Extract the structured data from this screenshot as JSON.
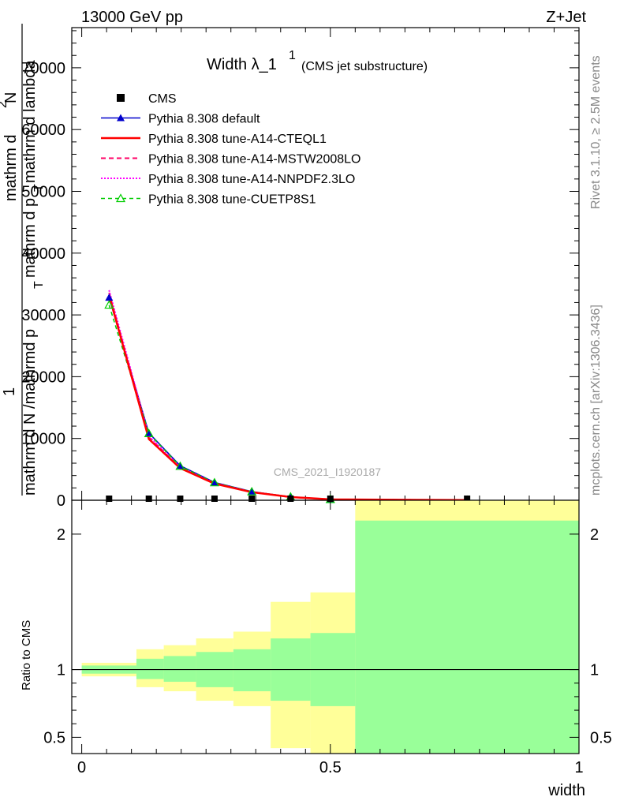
{
  "header": {
    "left": "13000 GeV pp",
    "right": "Z+Jet"
  },
  "side_labels": {
    "rivet": "Rivet 3.1.10, ≥ 2.5M events",
    "mcplots": "mcplots.cern.ch [arXiv:1306.3436]"
  },
  "watermark": "CMS_2021_I1920187",
  "colors": {
    "cms": "#000000",
    "default": "#0000cc",
    "a14_cteql1": "#ff0000",
    "a14_mstw": "#ff0066",
    "a14_nnpdf": "#ff00ff",
    "cuetp8s1": "#00cc00",
    "band_inner": "#99ff99",
    "band_outer": "#ffff99"
  },
  "chart_data": [
    {
      "type": "line",
      "title": "Width λ_1",
      "title_sup": "1",
      "title_note": "(CMS jet substructure)",
      "ylabel_parts": [
        "1",
        "mathrm d N /mathrmd p",
        "T",
        "mathrm d",
        "2",
        "N",
        "mathrm d p",
        "T",
        "mathrm d lambda"
      ],
      "ylim": [
        0,
        76500
      ],
      "xlim": [
        -0.02,
        1.0
      ],
      "yticks": [
        0,
        10000,
        20000,
        30000,
        40000,
        50000,
        60000,
        70000
      ],
      "ytick_labels": [
        "0",
        "10000",
        "20000",
        "30000",
        "40000",
        "50000",
        "60000",
        "70000"
      ],
      "x": [
        0.055,
        0.135,
        0.198,
        0.267,
        0.342,
        0.42,
        0.5,
        0.775
      ],
      "series": [
        {
          "name": "CMS",
          "key": "cms",
          "style": "marker-square",
          "values": [
            0,
            0,
            0,
            0,
            0,
            0,
            0,
            0
          ]
        },
        {
          "name": "Pythia 8.308 default",
          "key": "default",
          "style": "solid-triangle",
          "values": [
            32800,
            10900,
            5600,
            2900,
            1400,
            550,
            150,
            20
          ]
        },
        {
          "name": "Pythia 8.308 tune-A14-CTEQL1",
          "key": "a14_cteql1",
          "style": "solid",
          "values": [
            33200,
            9900,
            5200,
            2700,
            1300,
            520,
            140,
            20
          ]
        },
        {
          "name": "Pythia 8.308 tune-A14-MSTW2008LO",
          "key": "a14_mstw",
          "style": "dashed",
          "values": [
            33600,
            10200,
            5300,
            2750,
            1320,
            530,
            145,
            20
          ]
        },
        {
          "name": "Pythia 8.308 tune-A14-NNPDF2.3LO",
          "key": "a14_nnpdf",
          "style": "dotted",
          "values": [
            34000,
            10400,
            5350,
            2780,
            1340,
            535,
            145,
            20
          ]
        },
        {
          "name": "Pythia 8.308 tune-CUETP8S1",
          "key": "cuetp8s1",
          "style": "dashed-open-triangle",
          "values": [
            31600,
            10800,
            5500,
            2850,
            1380,
            545,
            148,
            20
          ]
        }
      ]
    },
    {
      "type": "area",
      "ylabel": "Ratio to CMS",
      "xlabel": "width",
      "xlim": [
        -0.02,
        1.0
      ],
      "ylim": [
        0.38,
        2.25
      ],
      "xticks": [
        0,
        0.5,
        1
      ],
      "xtick_labels": [
        "0",
        "0.5",
        "1"
      ],
      "yticks": [
        0.5,
        1,
        2
      ],
      "ytick_labels": [
        "0.5",
        "1",
        "2"
      ],
      "bin_edges": [
        0,
        0.11,
        0.165,
        0.23,
        0.305,
        0.38,
        0.46,
        0.55,
        1.0
      ],
      "inner_band": {
        "lo": [
          0.97,
          0.93,
          0.91,
          0.87,
          0.84,
          0.77,
          0.73,
          0.0
        ],
        "hi": [
          1.03,
          1.08,
          1.1,
          1.13,
          1.15,
          1.23,
          1.27,
          2.1
        ]
      },
      "outer_band": {
        "lo": [
          0.95,
          0.87,
          0.84,
          0.77,
          0.73,
          0.42,
          0.0,
          0.0
        ],
        "hi": [
          1.05,
          1.15,
          1.18,
          1.23,
          1.28,
          1.5,
          1.57,
          5.0
        ]
      },
      "reference": 1
    }
  ]
}
